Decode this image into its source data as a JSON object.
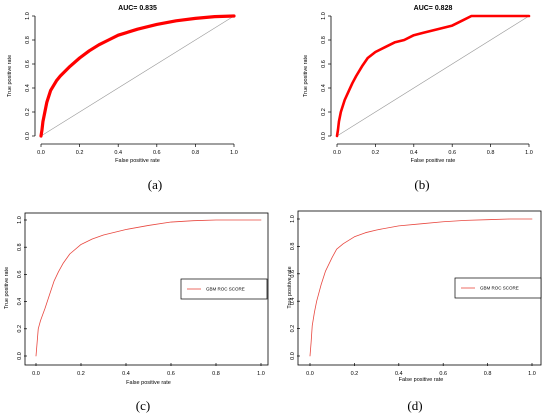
{
  "colors": {
    "roc_bold": "#ff0000",
    "roc_thin": "#e8473f",
    "diagonal": "#9a9a9a"
  },
  "panels": [
    {
      "label": "(a)",
      "title": "AUC= 0.835",
      "xlabel": "False positive rate",
      "ylabel": "True positive rate"
    },
    {
      "label": "(b)",
      "title": "AUC= 0.828",
      "xlabel": "False positive rate",
      "ylabel": "True positive rate"
    },
    {
      "label": "(c)",
      "title": "",
      "xlabel": "False positive rate",
      "ylabel": "True positive rate",
      "legend": "GBM ROC SCORE"
    },
    {
      "label": "(d)",
      "title": "",
      "xlabel": "False positive rate",
      "ylabel": "True positive rate",
      "legend": "GBM ROC SCORE"
    }
  ],
  "chart_data": [
    {
      "type": "line",
      "title": "AUC= 0.835",
      "xlabel": "False positive rate",
      "ylabel": "True positive rate",
      "xlim": [
        0,
        1
      ],
      "ylim": [
        0,
        1
      ],
      "grid": false,
      "box": false,
      "xticks": [
        "0.0",
        "0.2",
        "0.4",
        "0.6",
        "0.8",
        "1.0"
      ],
      "yticks": [
        "0.0",
        "0.2",
        "0.4",
        "0.6",
        "0.8",
        "1.0"
      ],
      "diagonal": true,
      "series": [
        {
          "name": "",
          "color": "#ff0000",
          "x": [
            0,
            0.005,
            0.01,
            0.02,
            0.03,
            0.05,
            0.08,
            0.1,
            0.15,
            0.2,
            0.25,
            0.3,
            0.35,
            0.4,
            0.5,
            0.6,
            0.7,
            0.8,
            0.9,
            1.0
          ],
          "y": [
            0,
            0.05,
            0.12,
            0.2,
            0.28,
            0.38,
            0.46,
            0.5,
            0.58,
            0.65,
            0.71,
            0.76,
            0.8,
            0.84,
            0.89,
            0.93,
            0.96,
            0.98,
            0.995,
            1.0
          ]
        }
      ]
    },
    {
      "type": "line",
      "title": "AUC= 0.828",
      "xlabel": "False positive rate",
      "ylabel": "True positive rate",
      "xlim": [
        0,
        1
      ],
      "ylim": [
        0,
        1
      ],
      "grid": false,
      "box": false,
      "xticks": [
        "0.0",
        "0.2",
        "0.4",
        "0.6",
        "0.8",
        "1.0"
      ],
      "yticks": [
        "0.0",
        "0.2",
        "0.4",
        "0.6",
        "0.8",
        "1.0"
      ],
      "diagonal": true,
      "series": [
        {
          "name": "",
          "color": "#ff0000",
          "x": [
            0,
            0.005,
            0.01,
            0.02,
            0.04,
            0.06,
            0.08,
            0.1,
            0.13,
            0.16,
            0.2,
            0.25,
            0.3,
            0.35,
            0.4,
            0.45,
            0.5,
            0.55,
            0.6,
            0.65,
            0.7,
            0.8,
            1.0
          ],
          "y": [
            0,
            0.05,
            0.12,
            0.2,
            0.3,
            0.37,
            0.44,
            0.5,
            0.58,
            0.65,
            0.7,
            0.74,
            0.78,
            0.8,
            0.84,
            0.86,
            0.88,
            0.9,
            0.92,
            0.96,
            1.0,
            1.0,
            1.0
          ]
        }
      ]
    },
    {
      "type": "line",
      "title": "",
      "xlabel": "False positive rate",
      "ylabel": "True positive rate",
      "xlim": [
        0,
        1
      ],
      "ylim": [
        0,
        1
      ],
      "grid": false,
      "box": true,
      "xticks": [
        "0.0",
        "0.2",
        "0.4",
        "0.6",
        "0.8",
        "1.0"
      ],
      "yticks": [
        "0.0",
        "0.2",
        "0.4",
        "0.6",
        "0.8",
        "1.0"
      ],
      "legend": "GBM ROC SCORE",
      "legend_position": "right",
      "series": [
        {
          "name": "GBM ROC SCORE",
          "color": "#e8473f",
          "x": [
            0,
            0.005,
            0.01,
            0.02,
            0.04,
            0.06,
            0.08,
            0.1,
            0.12,
            0.15,
            0.2,
            0.25,
            0.3,
            0.4,
            0.5,
            0.6,
            0.7,
            0.8,
            0.9,
            1.0
          ],
          "y": [
            0,
            0.1,
            0.2,
            0.26,
            0.35,
            0.45,
            0.55,
            0.62,
            0.68,
            0.75,
            0.82,
            0.86,
            0.89,
            0.93,
            0.96,
            0.985,
            0.995,
            1.0,
            1.0,
            1.0
          ]
        }
      ]
    },
    {
      "type": "line",
      "title": "",
      "xlabel": "False positive rate",
      "ylabel": "True positive rate",
      "xlim": [
        0,
        1
      ],
      "ylim": [
        0,
        1
      ],
      "grid": false,
      "box": true,
      "xticks": [
        "0.0",
        "0.2",
        "0.4",
        "0.6",
        "0.8",
        "1.0"
      ],
      "yticks": [
        "0.0",
        "0.2",
        "0.4",
        "0.6",
        "0.8",
        "1.0"
      ],
      "legend": "GBM ROC SCORE",
      "legend_position": "right",
      "series": [
        {
          "name": "GBM ROC SCORE",
          "color": "#e8473f",
          "x": [
            0,
            0.005,
            0.01,
            0.02,
            0.03,
            0.05,
            0.07,
            0.1,
            0.12,
            0.15,
            0.2,
            0.25,
            0.3,
            0.4,
            0.5,
            0.6,
            0.7,
            0.8,
            0.9,
            1.0
          ],
          "y": [
            0,
            0.1,
            0.22,
            0.32,
            0.4,
            0.52,
            0.62,
            0.72,
            0.78,
            0.82,
            0.87,
            0.9,
            0.92,
            0.95,
            0.965,
            0.98,
            0.99,
            0.995,
            1.0,
            1.0
          ]
        }
      ]
    }
  ]
}
